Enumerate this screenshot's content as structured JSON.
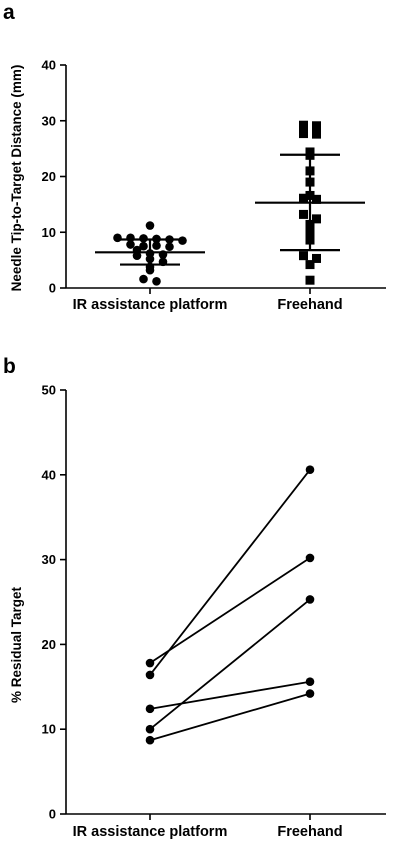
{
  "chart_data": [
    {
      "type": "scatter",
      "panel_label": "a",
      "categories": [
        "IR assistance platform",
        "Freehand"
      ],
      "ylabel": "Needle Tip-to-Target Distance (mm)",
      "ylim": [
        0,
        40
      ],
      "yticks": [
        0,
        10,
        20,
        30,
        40
      ],
      "grid": false,
      "series": [
        {
          "category": "IR assistance platform",
          "marker": "circle",
          "values": [
            11.2,
            9.0,
            9.0,
            8.9,
            8.8,
            8.7,
            8.5,
            7.8,
            7.5,
            7.6,
            7.4,
            6.8,
            6.2,
            6.0,
            5.8,
            5.2,
            4.7,
            3.8,
            3.2,
            1.6,
            1.2
          ],
          "mean": 6.4,
          "sd_low": 4.2,
          "sd_high": 8.7
        },
        {
          "category": "Freehand",
          "marker": "square",
          "values": [
            29.2,
            29.1,
            27.7,
            27.6,
            24.4,
            23.8,
            21.0,
            19.0,
            16.6,
            16.1,
            15.9,
            13.2,
            12.4,
            11.4,
            10.0,
            8.6,
            5.8,
            5.3,
            4.2,
            1.4
          ],
          "mean": 15.3,
          "sd_low": 6.8,
          "sd_high": 23.9
        }
      ]
    },
    {
      "type": "line",
      "panel_label": "b",
      "categories": [
        "IR assistance platform",
        "Freehand"
      ],
      "ylabel": "% Residual Target",
      "ylim": [
        0,
        50
      ],
      "yticks": [
        0,
        10,
        20,
        30,
        40,
        50
      ],
      "grid": false,
      "pairs": [
        [
          16.4,
          40.6
        ],
        [
          17.8,
          30.2
        ],
        [
          10.0,
          25.3
        ],
        [
          12.4,
          15.6
        ],
        [
          8.7,
          14.2
        ]
      ]
    }
  ]
}
